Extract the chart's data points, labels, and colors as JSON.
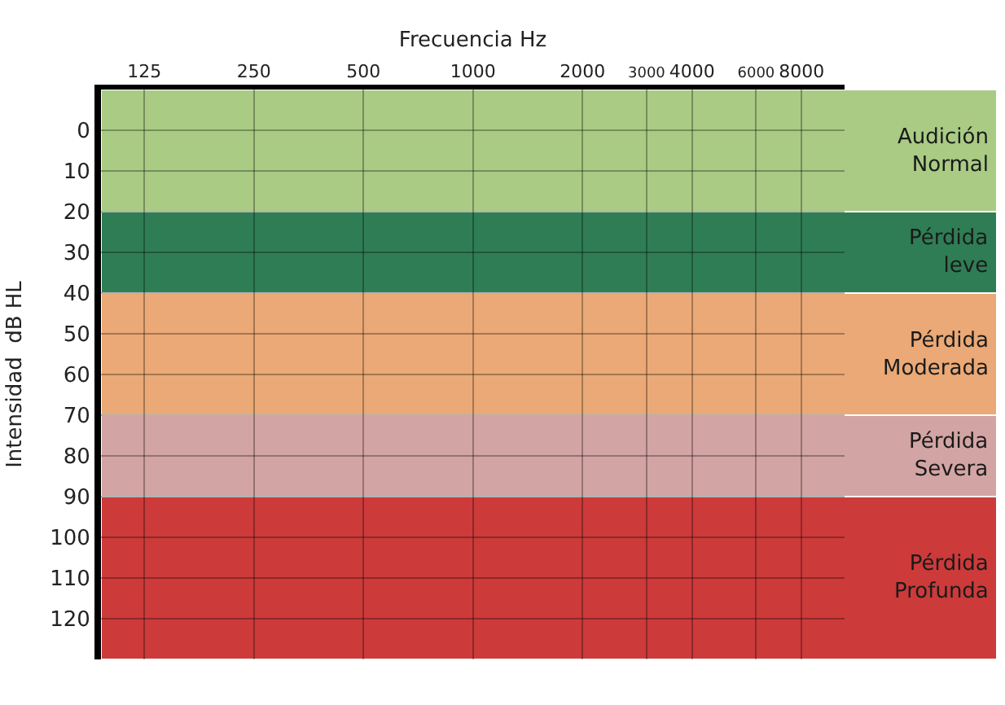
{
  "chart_data": {
    "type": "line",
    "xlabel": "Frecuencia Hz",
    "ylabel": "Intensidad  dB HL",
    "log": "x",
    "xlim": [
      95,
      10500
    ],
    "xticks": [
      125,
      250,
      500,
      1000,
      2000,
      3000,
      4000,
      6000,
      8000
    ],
    "ylim": [
      130,
      -10
    ],
    "yticks": [
      0,
      10,
      20,
      30,
      40,
      50,
      60,
      70,
      80,
      90,
      100,
      110,
      120
    ],
    "grid": true,
    "bands": [
      {
        "axis": "y",
        "from": -10,
        "to": 20,
        "label": "Audición\nNormal",
        "color": "#a9cb84"
      },
      {
        "axis": "y",
        "from": 20,
        "to": 40,
        "label": "Pérdida\nleve",
        "color": "#2f7d55"
      },
      {
        "axis": "y",
        "from": 40,
        "to": 70,
        "label": "Pérdida\nModerada",
        "color": "#eaa976"
      },
      {
        "axis": "y",
        "from": 70,
        "to": 90,
        "label": "Pérdida\nSevera",
        "color": "#d3a4a4"
      },
      {
        "axis": "y",
        "from": 90,
        "to": 130,
        "label": "Pérdida\nProfunda",
        "color": "#cc3a3a"
      }
    ]
  }
}
